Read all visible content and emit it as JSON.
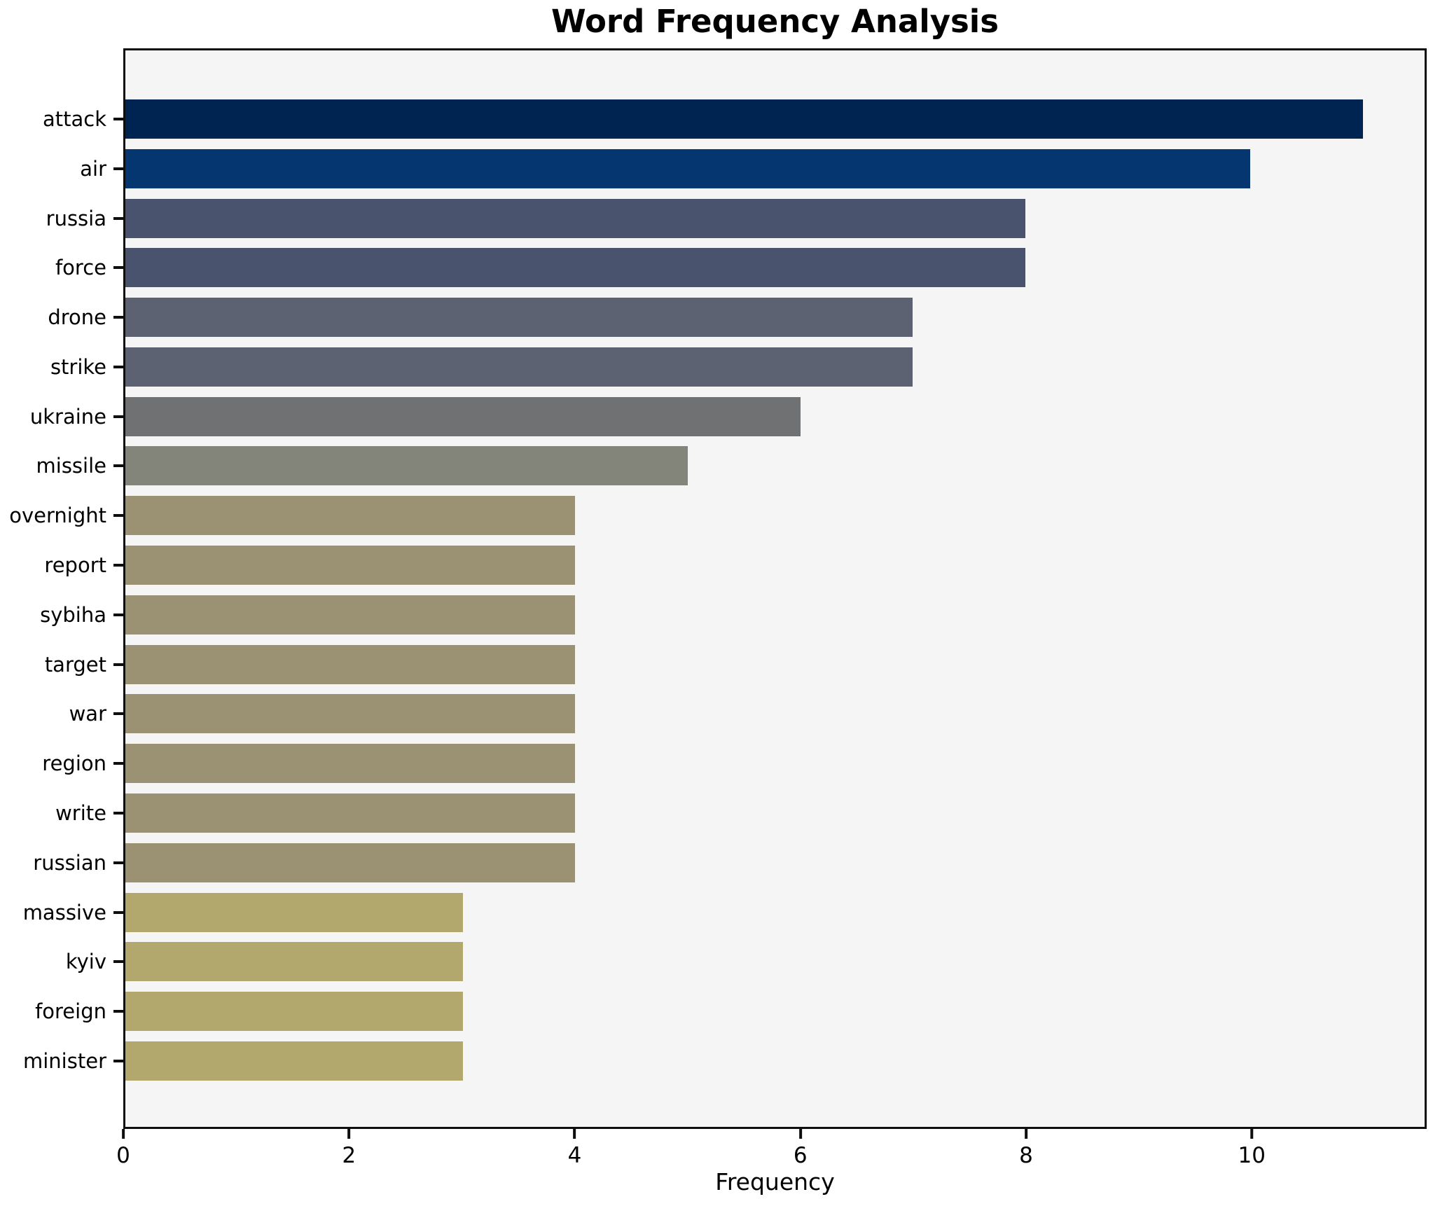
{
  "title": "Word Frequency Analysis",
  "chart_data": {
    "type": "bar",
    "orientation": "horizontal",
    "title": "Word Frequency Analysis",
    "xlabel": "Frequency",
    "ylabel": "",
    "categories": [
      "attack",
      "air",
      "russia",
      "force",
      "drone",
      "strike",
      "ukraine",
      "missile",
      "overnight",
      "report",
      "sybiha",
      "target",
      "war",
      "region",
      "write",
      "russian",
      "massive",
      "kyiv",
      "foreign",
      "minister"
    ],
    "values": [
      11,
      10,
      8,
      8,
      7,
      7,
      6,
      5,
      4,
      4,
      4,
      4,
      4,
      4,
      4,
      4,
      3,
      3,
      3,
      3
    ],
    "bar_colors": [
      "#002452",
      "#063670",
      "#4a536e",
      "#4a536e",
      "#5c6271",
      "#5c6271",
      "#6f7173",
      "#84857a",
      "#9a9272",
      "#9a9272",
      "#9a9272",
      "#9a9272",
      "#9a9272",
      "#9a9272",
      "#9a9272",
      "#9a9272",
      "#b2a86d",
      "#b2a86d",
      "#b2a86d",
      "#b2a86d"
    ],
    "x_ticks": [
      0,
      2,
      4,
      6,
      8,
      10
    ],
    "xlim": [
      0,
      11.55
    ],
    "grid": false,
    "legend": false,
    "colormap": "cividis",
    "plot_background": "#f5f5f6",
    "figure_background": "#ffffff",
    "border_color": "#0e0e0e"
  }
}
